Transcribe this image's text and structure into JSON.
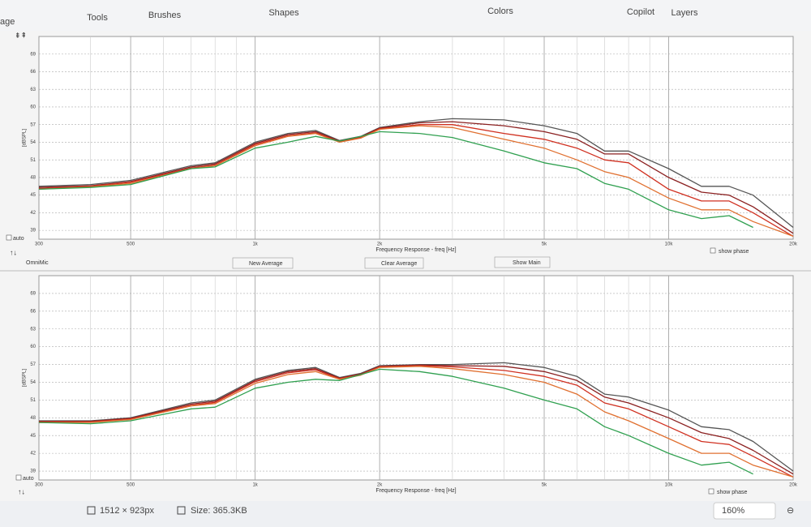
{
  "toolbar": {
    "left": "age",
    "items": [
      "Tools",
      "Brushes",
      "Shapes",
      "Colors",
      "Copilot",
      "Layers"
    ]
  },
  "panel": {
    "auto": "auto",
    "device": "OmniMic",
    "show_phase": "show phase",
    "buttons": [
      "New Average",
      "Clear Average",
      "Show Main"
    ]
  },
  "panel2": {
    "auto": "auto",
    "show_phase": "show phase"
  },
  "status": {
    "dimensions": "1512 × 923px",
    "size": "Size: 365.3KB",
    "zoom": "160%"
  },
  "chart_data": [
    {
      "type": "line",
      "xlabel": "Frequency Response - freq [Hz]",
      "ylabel": "[dBSPL]",
      "xlog": true,
      "grid": true,
      "x": [
        300,
        400,
        500,
        700,
        800,
        1000,
        1200,
        1400,
        1600,
        1800,
        2000,
        2500,
        3000,
        4000,
        5000,
        6000,
        7000,
        8000,
        10000,
        12000,
        14000,
        16000,
        20000
      ],
      "xlim": [
        300,
        20000
      ],
      "xticks": [
        300,
        500,
        {
          "value": 1000,
          "label": "1k"
        },
        {
          "value": 2000,
          "label": "2k"
        },
        {
          "value": 5000,
          "label": "5k"
        },
        {
          "value": 10000,
          "label": "10k"
        },
        {
          "value": 20000,
          "label": "20k"
        }
      ],
      "ylim": [
        37.5,
        72
      ],
      "yticks": [
        39,
        42,
        45,
        48,
        51,
        54,
        57,
        60,
        63,
        66,
        69
      ],
      "series": [
        {
          "name": "gray",
          "color": "#555555",
          "values": [
            46.5,
            46.8,
            47.5,
            50,
            50.5,
            54,
            55.5,
            56,
            54.3,
            55,
            56.5,
            57.5,
            58,
            57.8,
            56.8,
            55.5,
            52.5,
            52.5,
            49.5,
            46.5,
            46.5,
            45,
            39.5
          ]
        },
        {
          "name": "darkred",
          "color": "#8b2020",
          "values": [
            46.3,
            46.6,
            47.3,
            49.8,
            50.3,
            53.8,
            55.3,
            55.8,
            54.2,
            54.9,
            56.4,
            57.3,
            57.5,
            56.8,
            55.8,
            54.5,
            52,
            52,
            48,
            45.5,
            45,
            43,
            38.5
          ]
        },
        {
          "name": "red",
          "color": "#d03020",
          "values": [
            46.1,
            46.5,
            47.2,
            49.6,
            50.1,
            53.6,
            55.1,
            55.6,
            54.1,
            54.8,
            56.3,
            57,
            57,
            55.5,
            54.5,
            53,
            51,
            50.5,
            46,
            44,
            44,
            42,
            38
          ]
        },
        {
          "name": "orange",
          "color": "#e07030",
          "values": [
            46,
            46.4,
            47,
            49.5,
            50,
            53.4,
            55,
            55.5,
            54,
            54.7,
            56.2,
            56.8,
            56.5,
            54.5,
            53,
            51,
            49,
            48,
            44.5,
            42.5,
            42.5,
            40.5,
            38
          ]
        },
        {
          "name": "green",
          "color": "#30a050",
          "values": [
            46,
            46.3,
            46.8,
            49.5,
            49.8,
            53,
            54,
            55,
            54.2,
            55,
            55.8,
            55.5,
            54.8,
            52.5,
            50.5,
            49.5,
            47,
            46,
            42.5,
            41,
            41.5,
            39.5,
            null
          ]
        }
      ]
    },
    {
      "type": "line",
      "xlabel": "Frequency Response - freq [Hz]",
      "ylabel": "[dBSPL]",
      "xlog": true,
      "grid": true,
      "x": [
        300,
        400,
        500,
        700,
        800,
        1000,
        1200,
        1400,
        1600,
        1800,
        2000,
        2500,
        3000,
        4000,
        5000,
        6000,
        7000,
        8000,
        10000,
        12000,
        14000,
        16000,
        20000
      ],
      "xlim": [
        300,
        20000
      ],
      "xticks": [
        300,
        500,
        {
          "value": 1000,
          "label": "1k"
        },
        {
          "value": 2000,
          "label": "2k"
        },
        {
          "value": 5000,
          "label": "5k"
        },
        {
          "value": 10000,
          "label": "10k"
        },
        {
          "value": 20000,
          "label": "20k"
        }
      ],
      "ylim": [
        37.5,
        72
      ],
      "yticks": [
        39,
        42,
        45,
        48,
        51,
        54,
        57,
        60,
        63,
        66,
        69
      ],
      "series": [
        {
          "name": "gray",
          "color": "#555555",
          "values": [
            47.5,
            47.5,
            48,
            50.5,
            51,
            54.5,
            56,
            56.5,
            54.8,
            55.5,
            56.8,
            57,
            57,
            57.3,
            56.5,
            55,
            52,
            51.5,
            49.3,
            46.5,
            46,
            44,
            39
          ]
        },
        {
          "name": "darkred",
          "color": "#8b2020",
          "values": [
            47.4,
            47.4,
            47.9,
            50.3,
            50.8,
            54.3,
            55.8,
            56.3,
            54.7,
            55.4,
            56.7,
            56.9,
            56.8,
            56.7,
            55.8,
            54.3,
            51.5,
            50.5,
            48,
            45.5,
            44.5,
            42.5,
            38.5
          ]
        },
        {
          "name": "red",
          "color": "#d03020",
          "values": [
            47.3,
            47.3,
            47.8,
            50.1,
            50.6,
            54.1,
            55.6,
            56.1,
            54.6,
            55.3,
            56.6,
            56.8,
            56.6,
            56,
            55,
            53.5,
            50.5,
            49.5,
            46.5,
            44,
            43.5,
            41.5,
            38
          ]
        },
        {
          "name": "orange",
          "color": "#e07030",
          "values": [
            47.2,
            47.2,
            47.7,
            50,
            50.4,
            53.8,
            55.3,
            55.8,
            54.5,
            55.2,
            56.5,
            56.7,
            56.3,
            55.3,
            54,
            52,
            49,
            47.5,
            44.5,
            42,
            42,
            40,
            38
          ]
        },
        {
          "name": "green",
          "color": "#30a050",
          "values": [
            47.2,
            47,
            47.5,
            49.5,
            49.8,
            53,
            54,
            54.5,
            54.3,
            55.3,
            56.2,
            55.8,
            55,
            53,
            51,
            49.5,
            46.5,
            45,
            42,
            40,
            40.5,
            38.5,
            null
          ]
        }
      ]
    }
  ]
}
